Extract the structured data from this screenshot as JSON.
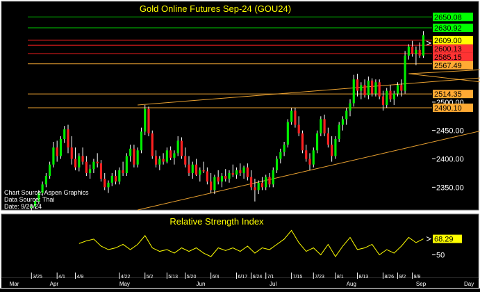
{
  "chart_data": [
    {
      "type": "candlestick",
      "title": "Gold Online Futures Sep-24 (GOU24)",
      "source_lines": [
        "Chart Source: Aspen Graphics",
        "Data Source: Thai",
        "Date: 9/20/24"
      ],
      "ylim": [
        2310,
        2675
      ],
      "y_ticks": [
        2350,
        2400,
        2450,
        2500
      ],
      "x_ticks": [
        "3/25",
        "4/1",
        "4/9",
        "4/22",
        "5/2",
        "5/13",
        "5/20",
        "6/4",
        "6/17",
        "6/24",
        "7/1",
        "7/15",
        "7/23",
        "8/1",
        "8/13",
        "8/26",
        "9/2",
        "9/9"
      ],
      "months": [
        "Mar",
        "Apr",
        "May",
        "Jun",
        "Jul",
        "Aug",
        "Sep"
      ],
      "grid": false,
      "levels": [
        {
          "value": 2650.08,
          "label": "2650.08",
          "color": "green",
          "label_bg": "#00ff00"
        },
        {
          "value": 2630.92,
          "label": "2630.92",
          "color": "green",
          "label_bg": "#00ff00"
        },
        {
          "value": 2609.0,
          "label": "2609.00",
          "color": "red",
          "label_bg": "#ffff00"
        },
        {
          "value": 2600.13,
          "label": "2600.13",
          "color": "red",
          "label_bg": "#ff3333"
        },
        {
          "value": 2585.15,
          "label": "2585.15",
          "color": "red",
          "label_bg": "#ff3333"
        },
        {
          "value": 2567.49,
          "label": "2567.49",
          "color": "orange",
          "label_bg": "#ffaa33"
        },
        {
          "value": 2514.35,
          "label": "2514.35",
          "color": "orange",
          "label_bg": "#ffaa33"
        },
        {
          "value": 2490.1,
          "label": "2490.10",
          "color": "orange",
          "label_bg": "#ffaa33"
        }
      ],
      "trendlines": [
        {
          "x1": 30,
          "y1": 2310,
          "x2": 153,
          "y2": 2493
        },
        {
          "x1": 30,
          "y1": 2495,
          "x2": 138,
          "y2": 2550
        },
        {
          "x1": 104,
          "y1": 2550,
          "x2": 152,
          "y2": 2567
        },
        {
          "x1": 104,
          "y1": 2550,
          "x2": 153,
          "y2": 2514
        }
      ],
      "candles": [
        {
          "x": 1,
          "o": 2313,
          "h": 2320,
          "l": 2308,
          "c": 2316
        },
        {
          "x": 2,
          "o": 2316,
          "h": 2330,
          "l": 2312,
          "c": 2326
        },
        {
          "x": 3,
          "o": 2325,
          "h": 2345,
          "l": 2320,
          "c": 2340
        },
        {
          "x": 4,
          "o": 2340,
          "h": 2360,
          "l": 2335,
          "c": 2355
        },
        {
          "x": 5,
          "o": 2355,
          "h": 2375,
          "l": 2350,
          "c": 2370
        },
        {
          "x": 6,
          "o": 2370,
          "h": 2395,
          "l": 2365,
          "c": 2390
        },
        {
          "x": 7,
          "o": 2390,
          "h": 2430,
          "l": 2385,
          "c": 2420
        },
        {
          "x": 8,
          "o": 2420,
          "h": 2432,
          "l": 2395,
          "c": 2405
        },
        {
          "x": 9,
          "o": 2405,
          "h": 2440,
          "l": 2400,
          "c": 2435
        },
        {
          "x": 10,
          "o": 2435,
          "h": 2458,
          "l": 2428,
          "c": 2452
        },
        {
          "x": 11,
          "o": 2452,
          "h": 2460,
          "l": 2410,
          "c": 2420
        },
        {
          "x": 12,
          "o": 2420,
          "h": 2440,
          "l": 2390,
          "c": 2400
        },
        {
          "x": 13,
          "o": 2400,
          "h": 2420,
          "l": 2380,
          "c": 2385
        },
        {
          "x": 14,
          "o": 2385,
          "h": 2410,
          "l": 2378,
          "c": 2405
        },
        {
          "x": 15,
          "o": 2405,
          "h": 2420,
          "l": 2390,
          "c": 2395
        },
        {
          "x": 16,
          "o": 2395,
          "h": 2405,
          "l": 2370,
          "c": 2375
        },
        {
          "x": 17,
          "o": 2375,
          "h": 2390,
          "l": 2365,
          "c": 2382
        },
        {
          "x": 18,
          "o": 2382,
          "h": 2400,
          "l": 2375,
          "c": 2395
        },
        {
          "x": 19,
          "o": 2395,
          "h": 2410,
          "l": 2385,
          "c": 2392
        },
        {
          "x": 20,
          "o": 2392,
          "h": 2398,
          "l": 2360,
          "c": 2365
        },
        {
          "x": 21,
          "o": 2365,
          "h": 2375,
          "l": 2345,
          "c": 2350
        },
        {
          "x": 22,
          "o": 2350,
          "h": 2362,
          "l": 2340,
          "c": 2358
        },
        {
          "x": 23,
          "o": 2358,
          "h": 2375,
          "l": 2352,
          "c": 2370
        },
        {
          "x": 24,
          "o": 2370,
          "h": 2380,
          "l": 2355,
          "c": 2360
        },
        {
          "x": 25,
          "o": 2360,
          "h": 2385,
          "l": 2355,
          "c": 2380
        },
        {
          "x": 26,
          "o": 2380,
          "h": 2395,
          "l": 2370,
          "c": 2375
        },
        {
          "x": 27,
          "o": 2375,
          "h": 2410,
          "l": 2370,
          "c": 2405
        },
        {
          "x": 28,
          "o": 2405,
          "h": 2425,
          "l": 2395,
          "c": 2418
        },
        {
          "x": 29,
          "o": 2418,
          "h": 2425,
          "l": 2385,
          "c": 2390
        },
        {
          "x": 30,
          "o": 2390,
          "h": 2420,
          "l": 2385,
          "c": 2415
        },
        {
          "x": 31,
          "o": 2415,
          "h": 2455,
          "l": 2410,
          "c": 2448
        },
        {
          "x": 32,
          "o": 2448,
          "h": 2495,
          "l": 2442,
          "c": 2488
        },
        {
          "x": 33,
          "o": 2488,
          "h": 2492,
          "l": 2440,
          "c": 2445
        },
        {
          "x": 34,
          "o": 2445,
          "h": 2450,
          "l": 2400,
          "c": 2405
        },
        {
          "x": 35,
          "o": 2405,
          "h": 2415,
          "l": 2385,
          "c": 2390
        },
        {
          "x": 36,
          "o": 2390,
          "h": 2405,
          "l": 2380,
          "c": 2400
        },
        {
          "x": 37,
          "o": 2400,
          "h": 2410,
          "l": 2390,
          "c": 2395
        },
        {
          "x": 38,
          "o": 2395,
          "h": 2420,
          "l": 2392,
          "c": 2415
        },
        {
          "x": 39,
          "o": 2415,
          "h": 2422,
          "l": 2398,
          "c": 2402
        },
        {
          "x": 40,
          "o": 2402,
          "h": 2415,
          "l": 2390,
          "c": 2410
        },
        {
          "x": 41,
          "o": 2410,
          "h": 2440,
          "l": 2405,
          "c": 2432
        },
        {
          "x": 42,
          "o": 2432,
          "h": 2438,
          "l": 2400,
          "c": 2405
        },
        {
          "x": 43,
          "o": 2405,
          "h": 2420,
          "l": 2385,
          "c": 2390
        },
        {
          "x": 44,
          "o": 2390,
          "h": 2405,
          "l": 2370,
          "c": 2375
        },
        {
          "x": 45,
          "o": 2375,
          "h": 2395,
          "l": 2365,
          "c": 2390
        },
        {
          "x": 46,
          "o": 2390,
          "h": 2400,
          "l": 2370,
          "c": 2372
        },
        {
          "x": 47,
          "o": 2372,
          "h": 2385,
          "l": 2360,
          "c": 2380
        },
        {
          "x": 48,
          "o": 2380,
          "h": 2395,
          "l": 2375,
          "c": 2378
        },
        {
          "x": 49,
          "o": 2378,
          "h": 2385,
          "l": 2355,
          "c": 2360
        },
        {
          "x": 50,
          "o": 2360,
          "h": 2375,
          "l": 2340,
          "c": 2345
        },
        {
          "x": 51,
          "o": 2345,
          "h": 2372,
          "l": 2338,
          "c": 2368
        },
        {
          "x": 52,
          "o": 2368,
          "h": 2380,
          "l": 2355,
          "c": 2360
        },
        {
          "x": 53,
          "o": 2360,
          "h": 2375,
          "l": 2350,
          "c": 2370
        },
        {
          "x": 54,
          "o": 2370,
          "h": 2382,
          "l": 2360,
          "c": 2365
        },
        {
          "x": 55,
          "o": 2365,
          "h": 2380,
          "l": 2358,
          "c": 2375
        },
        {
          "x": 56,
          "o": 2375,
          "h": 2390,
          "l": 2368,
          "c": 2372
        },
        {
          "x": 57,
          "o": 2372,
          "h": 2385,
          "l": 2365,
          "c": 2380
        },
        {
          "x": 58,
          "o": 2380,
          "h": 2392,
          "l": 2370,
          "c": 2375
        },
        {
          "x": 59,
          "o": 2375,
          "h": 2388,
          "l": 2365,
          "c": 2385
        },
        {
          "x": 60,
          "o": 2385,
          "h": 2392,
          "l": 2362,
          "c": 2368
        },
        {
          "x": 61,
          "o": 2368,
          "h": 2380,
          "l": 2345,
          "c": 2350
        },
        {
          "x": 62,
          "o": 2350,
          "h": 2365,
          "l": 2325,
          "c": 2345
        },
        {
          "x": 63,
          "o": 2345,
          "h": 2362,
          "l": 2338,
          "c": 2358
        },
        {
          "x": 64,
          "o": 2358,
          "h": 2368,
          "l": 2345,
          "c": 2350
        },
        {
          "x": 65,
          "o": 2350,
          "h": 2372,
          "l": 2345,
          "c": 2368
        },
        {
          "x": 66,
          "o": 2368,
          "h": 2375,
          "l": 2350,
          "c": 2355
        },
        {
          "x": 67,
          "o": 2355,
          "h": 2385,
          "l": 2350,
          "c": 2380
        },
        {
          "x": 68,
          "o": 2380,
          "h": 2405,
          "l": 2375,
          "c": 2400
        },
        {
          "x": 69,
          "o": 2400,
          "h": 2418,
          "l": 2392,
          "c": 2412
        },
        {
          "x": 70,
          "o": 2412,
          "h": 2430,
          "l": 2405,
          "c": 2425
        },
        {
          "x": 71,
          "o": 2425,
          "h": 2470,
          "l": 2420,
          "c": 2465
        },
        {
          "x": 72,
          "o": 2465,
          "h": 2490,
          "l": 2460,
          "c": 2485
        },
        {
          "x": 73,
          "o": 2485,
          "h": 2490,
          "l": 2455,
          "c": 2460
        },
        {
          "x": 74,
          "o": 2460,
          "h": 2475,
          "l": 2440,
          "c": 2445
        },
        {
          "x": 75,
          "o": 2445,
          "h": 2450,
          "l": 2410,
          "c": 2415
        },
        {
          "x": 76,
          "o": 2415,
          "h": 2425,
          "l": 2395,
          "c": 2400
        },
        {
          "x": 77,
          "o": 2400,
          "h": 2410,
          "l": 2380,
          "c": 2390
        },
        {
          "x": 78,
          "o": 2390,
          "h": 2420,
          "l": 2385,
          "c": 2415
        },
        {
          "x": 79,
          "o": 2415,
          "h": 2450,
          "l": 2410,
          "c": 2445
        },
        {
          "x": 80,
          "o": 2445,
          "h": 2475,
          "l": 2440,
          "c": 2470
        },
        {
          "x": 81,
          "o": 2470,
          "h": 2478,
          "l": 2440,
          "c": 2445
        },
        {
          "x": 82,
          "o": 2445,
          "h": 2455,
          "l": 2420,
          "c": 2425
        },
        {
          "x": 83,
          "o": 2425,
          "h": 2440,
          "l": 2395,
          "c": 2405
        },
        {
          "x": 84,
          "o": 2405,
          "h": 2440,
          "l": 2400,
          "c": 2435
        },
        {
          "x": 85,
          "o": 2435,
          "h": 2465,
          "l": 2430,
          "c": 2460
        },
        {
          "x": 86,
          "o": 2460,
          "h": 2475,
          "l": 2450,
          "c": 2470
        },
        {
          "x": 87,
          "o": 2470,
          "h": 2490,
          "l": 2460,
          "c": 2485
        },
        {
          "x": 88,
          "o": 2485,
          "h": 2505,
          "l": 2475,
          "c": 2498
        },
        {
          "x": 89,
          "o": 2498,
          "h": 2548,
          "l": 2492,
          "c": 2540
        },
        {
          "x": 90,
          "o": 2540,
          "h": 2550,
          "l": 2510,
          "c": 2520
        },
        {
          "x": 91,
          "o": 2520,
          "h": 2535,
          "l": 2505,
          "c": 2530
        },
        {
          "x": 92,
          "o": 2530,
          "h": 2540,
          "l": 2508,
          "c": 2512
        },
        {
          "x": 93,
          "o": 2512,
          "h": 2545,
          "l": 2505,
          "c": 2538
        },
        {
          "x": 94,
          "o": 2538,
          "h": 2542,
          "l": 2510,
          "c": 2515
        },
        {
          "x": 95,
          "o": 2515,
          "h": 2540,
          "l": 2510,
          "c": 2535
        },
        {
          "x": 96,
          "o": 2535,
          "h": 2540,
          "l": 2505,
          "c": 2510
        },
        {
          "x": 97,
          "o": 2510,
          "h": 2520,
          "l": 2485,
          "c": 2495
        },
        {
          "x": 98,
          "o": 2495,
          "h": 2525,
          "l": 2490,
          "c": 2520
        },
        {
          "x": 99,
          "o": 2520,
          "h": 2530,
          "l": 2500,
          "c": 2505
        },
        {
          "x": 100,
          "o": 2505,
          "h": 2520,
          "l": 2495,
          "c": 2515
        },
        {
          "x": 101,
          "o": 2515,
          "h": 2535,
          "l": 2510,
          "c": 2530
        },
        {
          "x": 102,
          "o": 2530,
          "h": 2540,
          "l": 2510,
          "c": 2520
        },
        {
          "x": 103,
          "o": 2520,
          "h": 2590,
          "l": 2515,
          "c": 2582
        },
        {
          "x": 104,
          "o": 2582,
          "h": 2602,
          "l": 2575,
          "c": 2598
        },
        {
          "x": 105,
          "o": 2598,
          "h": 2608,
          "l": 2580,
          "c": 2585
        },
        {
          "x": 106,
          "o": 2585,
          "h": 2598,
          "l": 2565,
          "c": 2592
        },
        {
          "x": 107,
          "o": 2592,
          "h": 2605,
          "l": 2578,
          "c": 2582
        },
        {
          "x": 108,
          "o": 2582,
          "h": 2625,
          "l": 2578,
          "c": 2618
        }
      ]
    },
    {
      "type": "line",
      "title": "Relative Strength Index",
      "ylim": [
        25,
        95
      ],
      "y_ticks": [
        50
      ],
      "current_value": 68.29,
      "current_label": "68.29",
      "series": [
        {
          "x": [
            14,
            16,
            18,
            20,
            22,
            24,
            26,
            28,
            30,
            32,
            34,
            36,
            38,
            40,
            42,
            44,
            46,
            48,
            50,
            52,
            54,
            56,
            58,
            60,
            62,
            64,
            66,
            68,
            70,
            72,
            74,
            76,
            78,
            80,
            82,
            84,
            86,
            88,
            90,
            92,
            94,
            96,
            98,
            100,
            102,
            104,
            106,
            108
          ],
          "values": [
            63,
            66,
            68,
            60,
            56,
            58,
            62,
            56,
            62,
            72,
            58,
            54,
            56,
            52,
            58,
            54,
            58,
            52,
            48,
            58,
            55,
            58,
            54,
            60,
            52,
            58,
            56,
            62,
            68,
            78,
            64,
            54,
            58,
            50,
            62,
            48,
            60,
            70,
            56,
            58,
            62,
            50,
            56,
            52,
            60,
            70,
            64,
            68.29
          ]
        }
      ]
    }
  ],
  "axis_right_label": "Day"
}
